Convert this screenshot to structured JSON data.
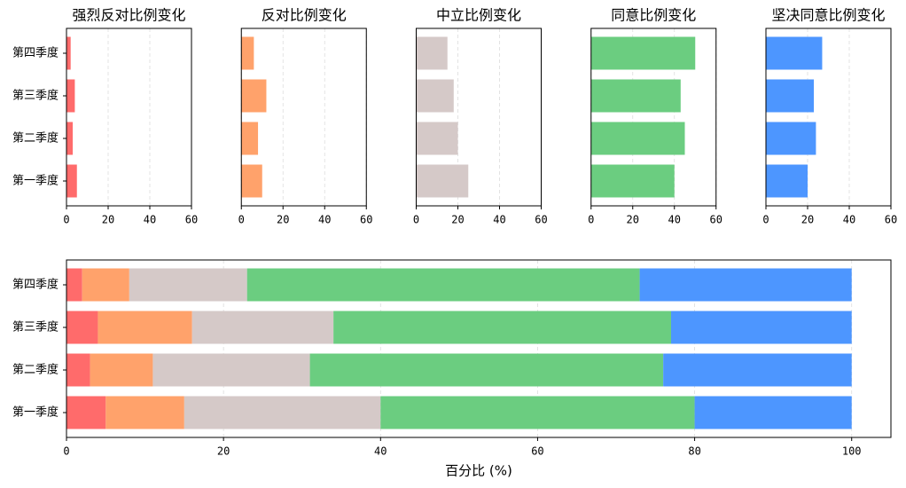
{
  "chart_data": [
    {
      "type": "barh",
      "title": "强烈反对比例变化",
      "categories": [
        "第一季度",
        "第二季度",
        "第三季度",
        "第四季度"
      ],
      "values": [
        5,
        3,
        4,
        2
      ],
      "color": "#ff6b6b",
      "xlim": [
        0,
        60
      ],
      "xticks": [
        0,
        20,
        40,
        60
      ],
      "grid": true
    },
    {
      "type": "barh",
      "title": "反对比例变化",
      "values": [
        10,
        8,
        12,
        6
      ],
      "color": "#ffa26b",
      "xlim": [
        0,
        60
      ],
      "xticks": [
        0,
        20,
        40,
        60
      ],
      "grid": true
    },
    {
      "type": "barh",
      "title": "中立比例变化",
      "values": [
        25,
        20,
        18,
        15
      ],
      "color": "#d5c9c8",
      "xlim": [
        0,
        60
      ],
      "xticks": [
        0,
        20,
        40,
        60
      ],
      "grid": true
    },
    {
      "type": "barh",
      "title": "同意比例变化",
      "values": [
        40,
        45,
        43,
        50
      ],
      "color": "#6bcd80",
      "xlim": [
        0,
        60
      ],
      "xticks": [
        0,
        20,
        40,
        60
      ],
      "grid": true
    },
    {
      "type": "barh",
      "title": "坚决同意比例变化",
      "values": [
        20,
        24,
        23,
        27
      ],
      "color": "#4d96ff",
      "xlim": [
        0,
        60
      ],
      "xticks": [
        0,
        20,
        40,
        60
      ],
      "grid": true
    },
    {
      "type": "stacked_barh",
      "categories": [
        "第一季度",
        "第二季度",
        "第三季度",
        "第四季度"
      ],
      "series": [
        {
          "color": "#ff6b6b",
          "values": [
            5,
            3,
            4,
            2
          ]
        },
        {
          "color": "#ffa26b",
          "values": [
            10,
            8,
            12,
            6
          ]
        },
        {
          "color": "#d5c9c8",
          "values": [
            25,
            20,
            18,
            15
          ]
        },
        {
          "color": "#6bcd80",
          "values": [
            40,
            45,
            43,
            50
          ]
        },
        {
          "color": "#4d96ff",
          "values": [
            20,
            24,
            23,
            27
          ]
        }
      ],
      "xlim": [
        0,
        105
      ],
      "xticks": [
        0,
        20,
        40,
        60,
        80,
        100
      ],
      "xlabel": "百分比 (%)",
      "grid": true
    }
  ]
}
